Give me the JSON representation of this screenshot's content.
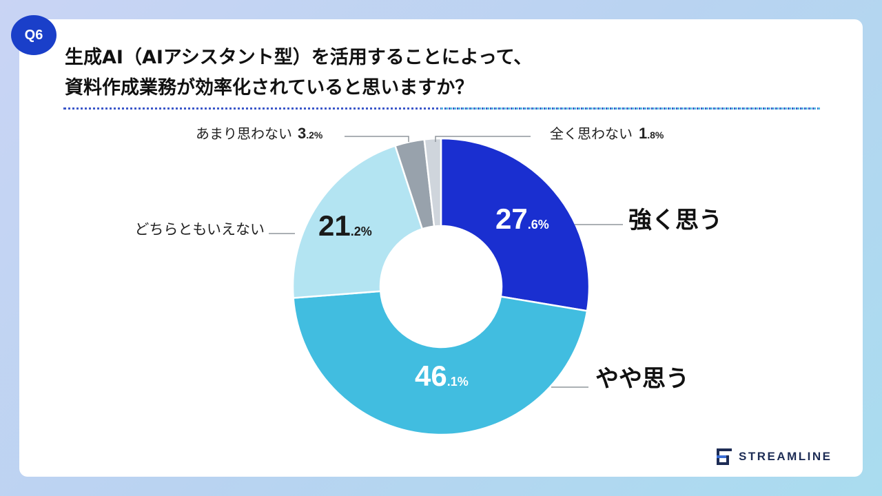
{
  "badge": "Q6",
  "title_lines": [
    "生成AI（AIアシスタント型）を活用することによって、",
    "資料作成業務が効率化されていると思いますか？"
  ],
  "brand": "STREAMLINE",
  "colors": {
    "strong": "#1a2fd0",
    "somewhat": "#41bde0",
    "neutral": "#b3e4f2",
    "not_much": "#98a2ac",
    "not_at_all": "#cfd5dc"
  },
  "chart_data": {
    "type": "pie",
    "donut": true,
    "slices": [
      {
        "name": "強く思う",
        "value": 27.6,
        "int_part": "27",
        "dec_part": ".6%",
        "color_key": "strong"
      },
      {
        "name": "やや思う",
        "value": 46.1,
        "int_part": "46",
        "dec_part": ".1%",
        "color_key": "somewhat"
      },
      {
        "name": "どちらともいえない",
        "value": 21.2,
        "int_part": "21",
        "dec_part": ".2%",
        "color_key": "neutral"
      },
      {
        "name": "あまり思わない",
        "value": 3.2,
        "int_part": "3",
        "dec_part": ".2%",
        "color_key": "not_much"
      },
      {
        "name": "全く思わない",
        "value": 1.8,
        "int_part": "1",
        "dec_part": ".8%",
        "color_key": "not_at_all"
      }
    ]
  }
}
